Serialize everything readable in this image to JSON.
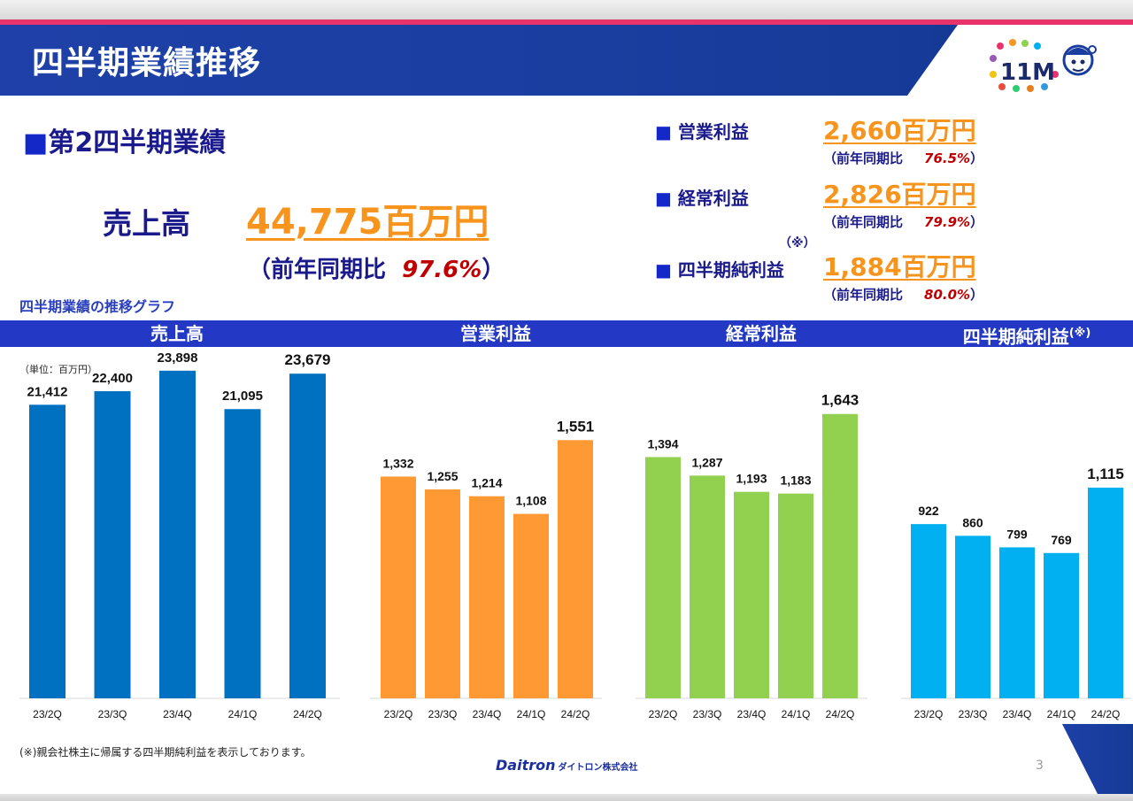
{
  "page": {
    "title": "四半期業績推移",
    "section_heading": "第2四半期業績",
    "square_mark": "■",
    "graph_caption": "四半期業績の推移グラフ",
    "unit_note": "（単位：百万円）",
    "footnote": "(※)親会社株主に帰属する四半期純利益を表示しております。",
    "company_name": "Daitron",
    "company_name_jp": "ダイトロン株式会社",
    "page_number": "3",
    "logo_text": "11M"
  },
  "sales": {
    "label": "売上高",
    "value": "44,775百万円",
    "yoy_prefix": "（前年同期比",
    "yoy_value": "97.6%",
    "yoy_suffix": "）"
  },
  "kpis": [
    {
      "label": "営業利益",
      "value": "2,660百万円",
      "yoy_prefix": "（前年同期比",
      "yoy_value": "76.5%",
      "yoy_suffix": "）"
    },
    {
      "label": "経常利益",
      "value": "2,826百万円",
      "yoy_prefix": "（前年同期比",
      "yoy_value": "79.9%",
      "yoy_suffix": "）"
    },
    {
      "label": "四半期純利益",
      "value": "1,884百万円",
      "yoy_prefix": "（前年同期比",
      "yoy_value": "80.0%",
      "yoy_suffix": "）",
      "note_mark": "（※）"
    }
  ],
  "colors": {
    "sales": "#0070c0",
    "operating": "#ff9933",
    "ordinary": "#92d050",
    "net": "#00b0f0",
    "header_band": "#2338c4",
    "accent_orange": "#f7941d"
  },
  "chart_data": [
    {
      "type": "bar",
      "title": "売上高",
      "categories": [
        "23/2Q",
        "23/3Q",
        "23/4Q",
        "24/1Q",
        "24/2Q"
      ],
      "values": [
        21412,
        22400,
        23898,
        21095,
        23679
      ],
      "labels": [
        "21,412",
        "22,400",
        "23,898",
        "21,095",
        "23,679"
      ],
      "ylim": [
        0,
        25500
      ],
      "color": "#0070c0"
    },
    {
      "type": "bar",
      "title": "営業利益",
      "categories": [
        "23/2Q",
        "23/3Q",
        "23/4Q",
        "24/1Q",
        "24/2Q"
      ],
      "values": [
        1332,
        1255,
        1214,
        1108,
        1551
      ],
      "labels": [
        "1,332",
        "1,255",
        "1,214",
        "1,108",
        "1,551"
      ],
      "ylim": [
        0,
        2100
      ],
      "color": "#ff9933"
    },
    {
      "type": "bar",
      "title": "経常利益",
      "categories": [
        "23/2Q",
        "23/3Q",
        "23/4Q",
        "24/1Q",
        "24/2Q"
      ],
      "values": [
        1394,
        1287,
        1193,
        1183,
        1643
      ],
      "labels": [
        "1,394",
        "1,287",
        "1,193",
        "1,183",
        "1,643"
      ],
      "ylim": [
        0,
        2020
      ],
      "color": "#92d050"
    },
    {
      "type": "bar",
      "title": "四半期純利益",
      "title_note": "(※)",
      "categories": [
        "23/2Q",
        "23/3Q",
        "23/4Q",
        "24/1Q",
        "24/2Q"
      ],
      "values": [
        922,
        860,
        799,
        769,
        1115
      ],
      "labels": [
        "922",
        "860",
        "799",
        "769",
        "1,115"
      ],
      "ylim": [
        0,
        1850
      ],
      "color": "#00b0f0"
    }
  ]
}
